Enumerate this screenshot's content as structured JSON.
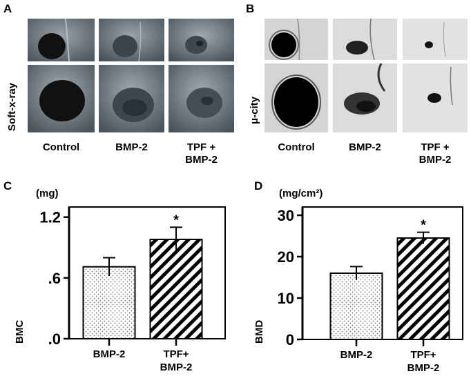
{
  "panels": {
    "A": {
      "letter": "A",
      "row_label": "Soft-x-ray",
      "columns": [
        "Control",
        "BMP-2"
      ],
      "col3_line1": "TPF +",
      "col3_line2": "BMP-2"
    },
    "B": {
      "letter": "B",
      "row_label": "μ-city",
      "columns": [
        "Control",
        "BMP-2"
      ],
      "col3_line1": "TPF +",
      "col3_line2": "BMP-2"
    },
    "C": {
      "letter": "C",
      "unit": "(mg)"
    },
    "D": {
      "letter": "D",
      "unit": "(mg/cm²)"
    }
  },
  "chart_data": [
    {
      "type": "bar",
      "panel": "C",
      "categories": [
        "BMP-2",
        "TPF+ BMP-2"
      ],
      "values": [
        0.71,
        0.98
      ],
      "errors": [
        0.09,
        0.12
      ],
      "significance": [
        "",
        "*"
      ],
      "yticks": [
        ".0",
        ".6",
        "1.2"
      ],
      "ytick_values": [
        0,
        0.6,
        1.2
      ],
      "ylim": [
        0,
        1.3
      ],
      "ylabel": "BMC",
      "bar_fills": [
        "dotted",
        "diagonal-stripes"
      ]
    },
    {
      "type": "bar",
      "panel": "D",
      "categories": [
        "BMP-2",
        "TPF+ BMP-2"
      ],
      "values": [
        16,
        24.5
      ],
      "errors": [
        1.6,
        1.4
      ],
      "significance": [
        "",
        "*"
      ],
      "yticks": [
        "0",
        "10",
        "20",
        "30"
      ],
      "ytick_values": [
        0,
        10,
        20,
        30
      ],
      "ylim": [
        0,
        32
      ],
      "ylabel": "BMD",
      "bar_fills": [
        "dotted",
        "diagonal-stripes"
      ]
    }
  ]
}
